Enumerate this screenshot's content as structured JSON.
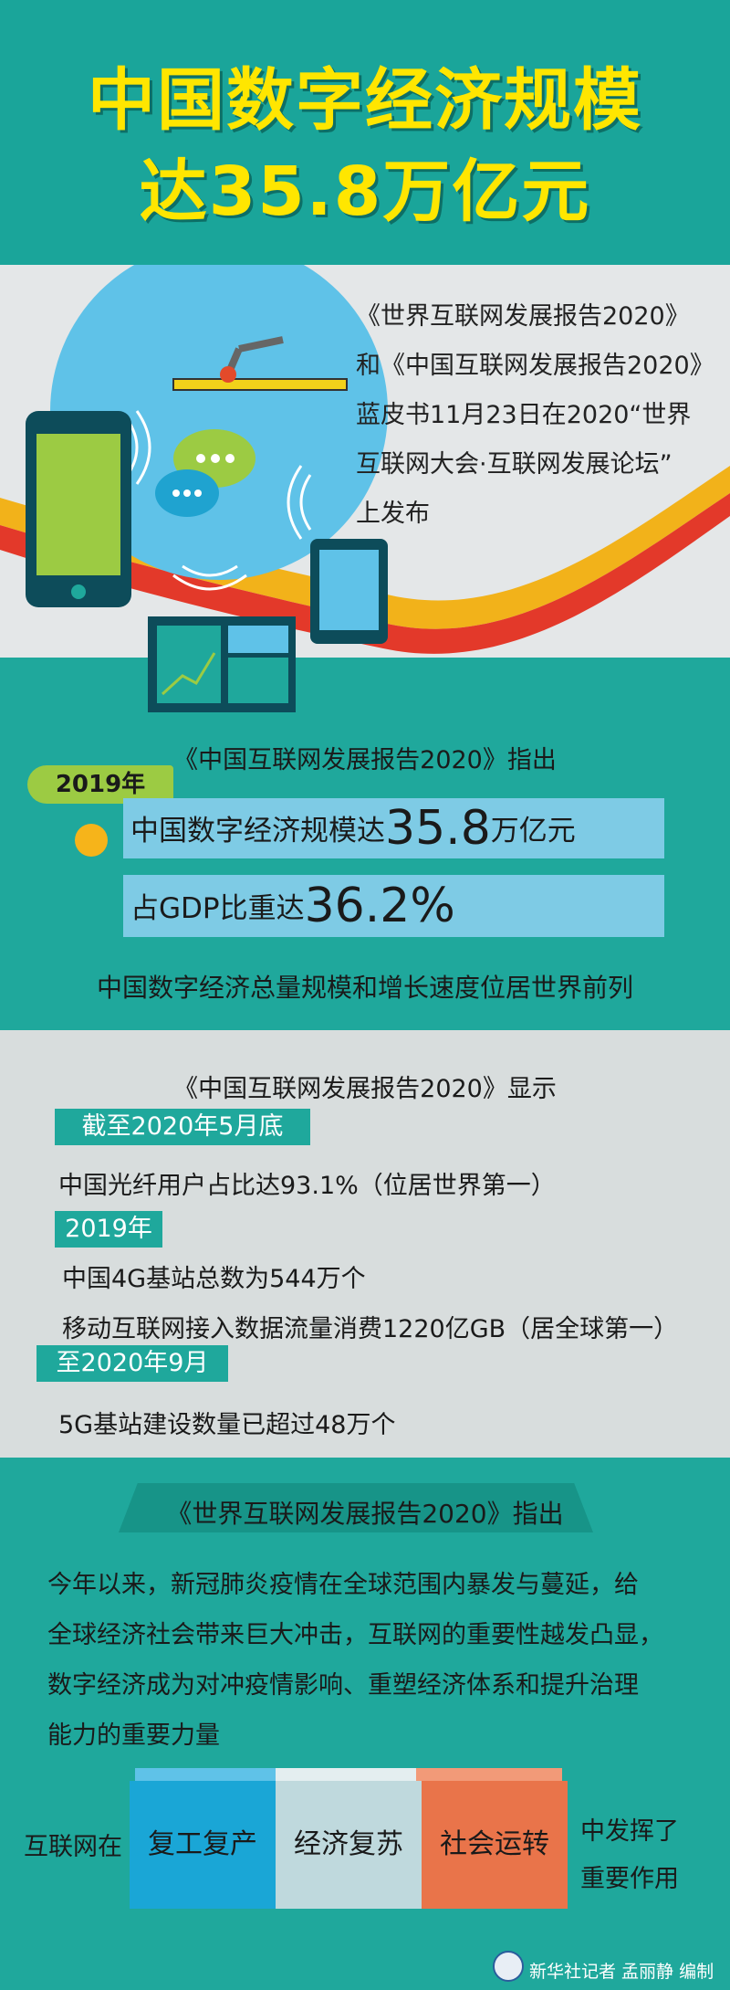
{
  "header": {
    "title_line1": "中国数字经济规模",
    "title_line2": "达35.8万亿元"
  },
  "intro": {
    "lines": [
      "《世界互联网发展报告2020》",
      "和《中国互联网发展报告2020》",
      "蓝皮书11月23日在2020“世界",
      "互联网大会·互联网发展论坛”",
      "上发布"
    ]
  },
  "stats2019": {
    "pointer": "《中国互联网发展报告2020》指出",
    "year_tag": "2019年",
    "scale_prefix": "中国数字经济规模达",
    "scale_value": "35.8",
    "scale_suffix": "万亿元",
    "gdp_prefix": "占GDP比重达",
    "gdp_value": "36.2%",
    "ranking": "中国数字经济总量规模和增长速度位居世界前列"
  },
  "report": {
    "heading": "《中国互联网发展报告2020》显示",
    "tag1": "截至2020年5月底",
    "line1": "中国光纤用户占比达93.1%（位居世界第一）",
    "tag2": "2019年",
    "line2": "中国4G基站总数为544万个",
    "line3": "移动互联网接入数据流量消费1220亿GB（居全球第一）",
    "tag3": "至2020年9月",
    "line4": "5G基站建设数量已超过48万个"
  },
  "world": {
    "heading": "《世界互联网发展报告2020》指出",
    "para": [
      "今年以来，新冠肺炎疫情在全球范围内暴发与蔓延，给",
      "全球经济社会带来巨大冲击，互联网的重要性越发凸显，",
      "数字经济成为对冲疫情影响、重塑经济体系和提升治理",
      "能力的重要力量"
    ],
    "left_label": "互联网在",
    "boxes": [
      "复工复产",
      "经济复苏",
      "社会运转"
    ],
    "right_label_1": "中发挥了",
    "right_label_2": "重要作用"
  },
  "footer": {
    "credit": "新华社记者 孟丽静 编制"
  },
  "colors": {
    "teal": "#1fa89c",
    "title_yellow": "#ffe600",
    "bar_blue": "#7ecbe5",
    "tag_green": "#9ccb43",
    "box_blue": "#1aa6d6",
    "box_light": "#bfd9dd",
    "box_orange": "#e9744a"
  }
}
